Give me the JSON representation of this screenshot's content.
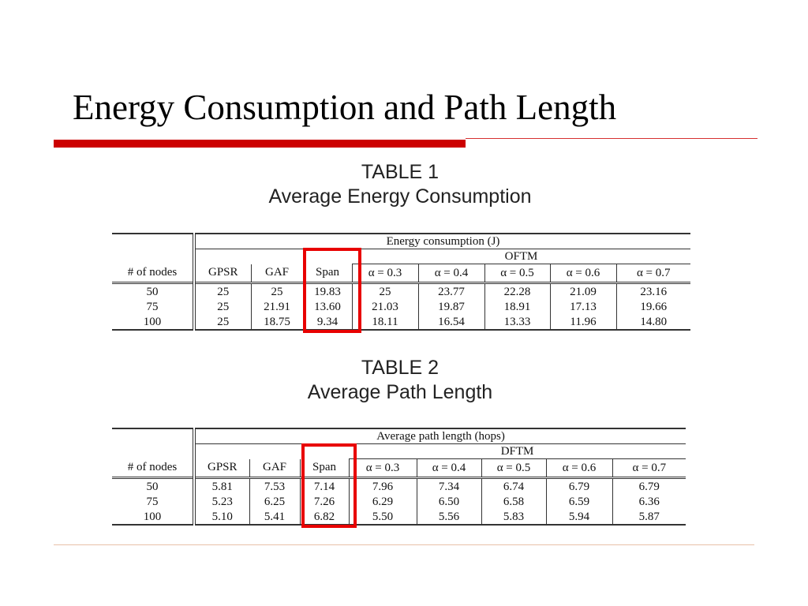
{
  "slide": {
    "title": "Energy Consumption and Path Length"
  },
  "table1": {
    "caption_number": "TABLE 1",
    "caption_name": "Average Energy Consumption",
    "group_header": "Energy consumption (J)",
    "subgroup_header": "OFTM",
    "columns": [
      "# of nodes",
      "GPSR",
      "GAF",
      "Span",
      "α = 0.3",
      "α = 0.4",
      "α = 0.5",
      "α = 0.6",
      "α = 0.7"
    ],
    "rows": [
      [
        "50",
        "25",
        "25",
        "19.83",
        "25",
        "23.77",
        "22.28",
        "21.09",
        "23.16"
      ],
      [
        "75",
        "25",
        "21.91",
        "13.60",
        "21.03",
        "19.87",
        "18.91",
        "17.13",
        "19.66"
      ],
      [
        "100",
        "25",
        "18.75",
        "9.34",
        "18.11",
        "16.54",
        "13.33",
        "11.96",
        "14.80"
      ]
    ]
  },
  "table2": {
    "caption_number": "TABLE 2",
    "caption_name": "Average Path Length",
    "group_header": "Average path length (hops)",
    "subgroup_header": "DFTM",
    "columns": [
      "# of nodes",
      "GPSR",
      "GAF",
      "Span",
      "α = 0.3",
      "α = 0.4",
      "α = 0.5",
      "α = 0.6",
      "α = 0.7"
    ],
    "rows": [
      [
        "50",
        "5.81",
        "7.53",
        "7.14",
        "7.96",
        "7.34",
        "6.74",
        "6.79",
        "6.79"
      ],
      [
        "75",
        "5.23",
        "6.25",
        "7.26",
        "6.29",
        "6.50",
        "6.58",
        "6.59",
        "6.36"
      ],
      [
        "100",
        "5.10",
        "5.41",
        "6.82",
        "5.50",
        "5.56",
        "5.83",
        "5.94",
        "5.87"
      ]
    ]
  },
  "colors": {
    "accent_red": "#cc0000",
    "highlight_red": "#e80000"
  }
}
